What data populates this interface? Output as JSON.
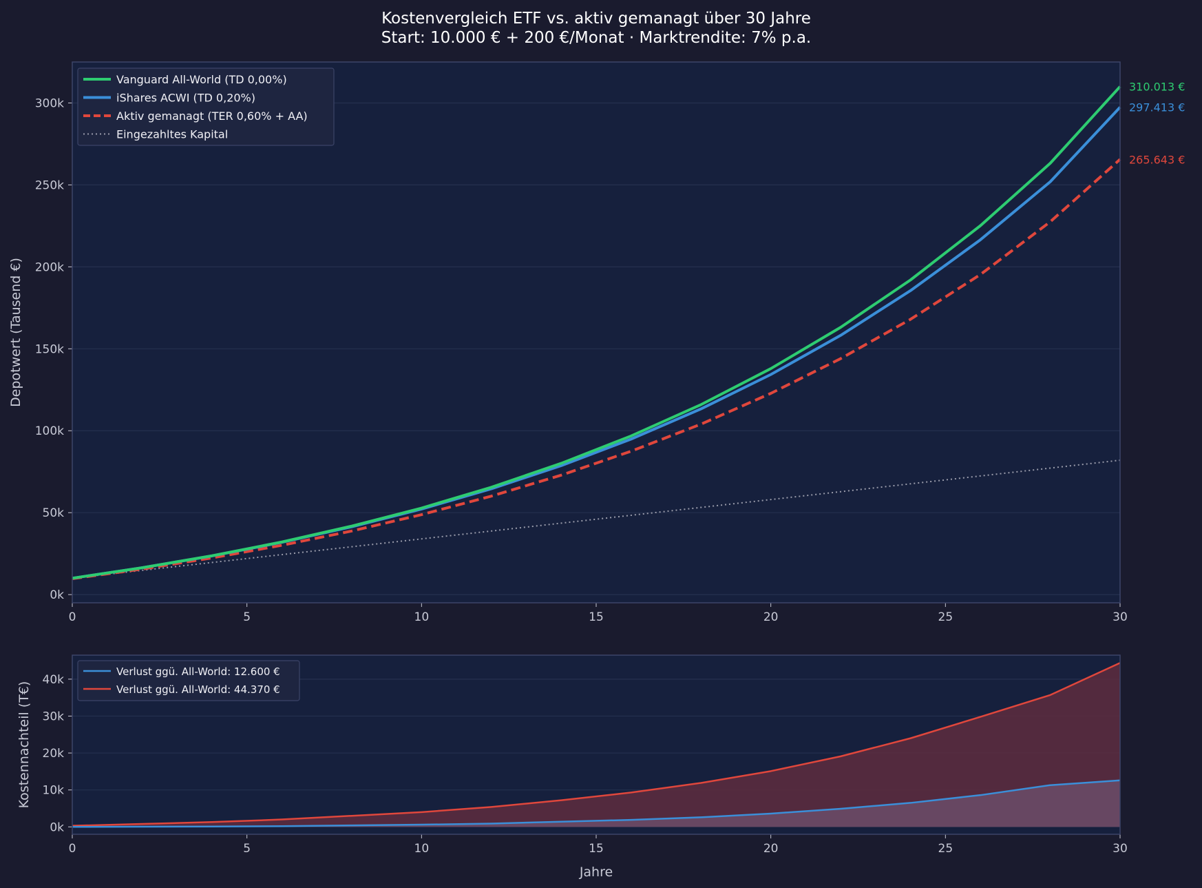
{
  "title": "Kostenvergleich ETF vs. aktiv gemanagt über 30 Jahre",
  "subtitle": "Start: 10.000 € + 200 €/Monat · Marktrendite: 7% p.a.",
  "colors": {
    "background": "#1a1b2e",
    "plot_bg": "#16203d",
    "green": "#2ecc71",
    "blue": "#3b8fd9",
    "red": "#e0473c",
    "gray": "#9a9cab",
    "fill_red": "#5e2d3e",
    "fill_blue": "#6b4c68"
  },
  "chart_data": [
    {
      "type": "line",
      "xlabel": "",
      "ylabel": "Depotwert (Tausend €)",
      "xlim": [
        0,
        30
      ],
      "ylim": [
        -5,
        325
      ],
      "x_ticks": [
        0,
        5,
        10,
        15,
        20,
        25,
        30
      ],
      "y_ticks": [
        0,
        50,
        100,
        150,
        200,
        250,
        300
      ],
      "y_tick_labels": [
        "0k",
        "50k",
        "100k",
        "150k",
        "200k",
        "250k",
        "300k"
      ],
      "grid": true,
      "legend_position": "top-left",
      "x": [
        0,
        2,
        4,
        6,
        8,
        10,
        12,
        14,
        16,
        18,
        20,
        22,
        24,
        26,
        28,
        30
      ],
      "series": [
        {
          "name": "Vanguard All-World (TD 0,00%)",
          "color": "#2ecc71",
          "style": "solid",
          "values": [
            10,
            16.4,
            23.7,
            32.1,
            41.8,
            52.8,
            65.5,
            80.1,
            96.8,
            115.9,
            137.9,
            163.1,
            192.0,
            225.1,
            263.2,
            310.0
          ],
          "end_label": "310.013 €"
        },
        {
          "name": "iShares ACWI (TD 0,20%)",
          "color": "#3b8fd9",
          "style": "solid",
          "values": [
            10,
            16.4,
            23.6,
            31.9,
            41.4,
            52.2,
            64.6,
            78.7,
            94.9,
            113.3,
            134.3,
            158.2,
            185.5,
            216.5,
            251.9,
            297.4
          ],
          "end_label": "297.413 €"
        },
        {
          "name": "Aktiv gemanagt (TER 0,60% + AA)",
          "color": "#e0473c",
          "style": "dashed",
          "values": [
            9.7,
            15.6,
            22.4,
            30.1,
            38.8,
            48.8,
            60.1,
            72.9,
            87.5,
            104.0,
            122.8,
            144.0,
            168.0,
            195.3,
            227.5,
            265.6
          ],
          "end_label": "265.643 €"
        },
        {
          "name": "Eingezahltes Kapital",
          "color": "#9a9cab",
          "style": "dotted",
          "values": [
            10,
            14.8,
            19.6,
            24.4,
            29.2,
            34,
            38.8,
            43.6,
            48.4,
            53.2,
            58,
            62.8,
            67.6,
            72.4,
            77.2,
            82
          ]
        }
      ]
    },
    {
      "type": "area",
      "xlabel": "Jahre",
      "ylabel": "Kostennachteil (T€)",
      "xlim": [
        0,
        30
      ],
      "ylim": [
        -2,
        46.5
      ],
      "x_ticks": [
        0,
        5,
        10,
        15,
        20,
        25,
        30
      ],
      "y_ticks": [
        0,
        10,
        20,
        30,
        40
      ],
      "y_tick_labels": [
        "0k",
        "10k",
        "20k",
        "30k",
        "40k"
      ],
      "grid": true,
      "legend_position": "top-left",
      "x": [
        0,
        2,
        4,
        6,
        8,
        10,
        12,
        14,
        16,
        18,
        20,
        22,
        24,
        26,
        28,
        30
      ],
      "series": [
        {
          "name": "Verlust ggü. All-World: 12.600 €",
          "color": "#3b8fd9",
          "values": [
            0,
            0.05,
            0.1,
            0.2,
            0.4,
            0.6,
            0.9,
            1.4,
            1.9,
            2.6,
            3.6,
            4.9,
            6.5,
            8.6,
            11.3,
            12.6
          ]
        },
        {
          "name": "Verlust ggü. All-World: 44.370 €",
          "color": "#e0473c",
          "values": [
            0.3,
            0.8,
            1.3,
            2.0,
            3.0,
            4.0,
            5.4,
            7.2,
            9.3,
            11.9,
            15.1,
            19.1,
            24.0,
            29.8,
            35.7,
            44.4
          ]
        }
      ]
    }
  ]
}
